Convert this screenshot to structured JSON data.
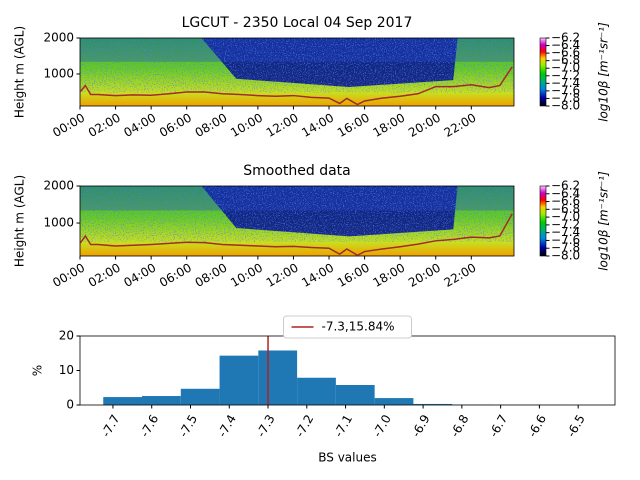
{
  "chart_data": [
    {
      "type": "heatmap",
      "title": "LGCUT - 2350 Local 04 Sep 2017",
      "ylabel": "Height m (AGL)",
      "xlim": [
        0,
        24.4
      ],
      "xticks": [
        {
          "value": 0,
          "label": "00:00"
        },
        {
          "value": 2,
          "label": "02:00"
        },
        {
          "value": 4,
          "label": "04:00"
        },
        {
          "value": 6,
          "label": "06:00"
        },
        {
          "value": 8,
          "label": "08:00"
        },
        {
          "value": 10,
          "label": "10:00"
        },
        {
          "value": 12,
          "label": "12:00"
        },
        {
          "value": 14,
          "label": "14:00"
        },
        {
          "value": 16,
          "label": "16:00"
        },
        {
          "value": 18,
          "label": "18:00"
        },
        {
          "value": 20,
          "label": "20:00"
        },
        {
          "value": 22,
          "label": "22:00"
        }
      ],
      "ylim": [
        110,
        2000
      ],
      "yticks": [
        1000,
        2000
      ],
      "colorbar": {
        "label": "log10β [m⁻¹sr⁻¹]",
        "clim": [
          -8.0,
          -6.2
        ],
        "ticks": [
          {
            "value": -6.2,
            "label": "−6.2"
          },
          {
            "value": -6.4,
            "label": "−6.4"
          },
          {
            "value": -6.6,
            "label": "−6.6"
          },
          {
            "value": -6.8,
            "label": "−6.8"
          },
          {
            "value": -7.0,
            "label": "−7.0"
          },
          {
            "value": -7.2,
            "label": "−7.2"
          },
          {
            "value": -7.4,
            "label": "−7.4"
          },
          {
            "value": -7.6,
            "label": "−7.6"
          },
          {
            "value": -7.8,
            "label": "−7.8"
          },
          {
            "value": -8.0,
            "label": "−8.0"
          }
        ]
      },
      "series": [
        {
          "color": "#a52a2a",
          "x": [
            0,
            0.3,
            0.6,
            1,
            2,
            3,
            4,
            5,
            6,
            7,
            8,
            9,
            10,
            11,
            12,
            13,
            14,
            14.6,
            15,
            15.6,
            16,
            17,
            18,
            19,
            20,
            21,
            22,
            23,
            23.6,
            24.3
          ],
          "values": [
            500,
            680,
            430,
            430,
            400,
            420,
            410,
            450,
            500,
            500,
            450,
            430,
            400,
            380,
            400,
            350,
            330,
            180,
            320,
            150,
            250,
            330,
            380,
            450,
            650,
            650,
            700,
            620,
            680,
            1200
          ]
        }
      ]
    },
    {
      "type": "heatmap",
      "title": "Smoothed data",
      "ylabel": "Height m (AGL)",
      "xlim": [
        0,
        24.4
      ],
      "xticks": [
        {
          "value": 0,
          "label": "00:00"
        },
        {
          "value": 2,
          "label": "02:00"
        },
        {
          "value": 4,
          "label": "04:00"
        },
        {
          "value": 6,
          "label": "06:00"
        },
        {
          "value": 8,
          "label": "08:00"
        },
        {
          "value": 10,
          "label": "10:00"
        },
        {
          "value": 12,
          "label": "12:00"
        },
        {
          "value": 14,
          "label": "14:00"
        },
        {
          "value": 16,
          "label": "16:00"
        },
        {
          "value": 18,
          "label": "18:00"
        },
        {
          "value": 20,
          "label": "20:00"
        },
        {
          "value": 22,
          "label": "22:00"
        }
      ],
      "ylim": [
        110,
        2000
      ],
      "yticks": [
        1000,
        2000
      ],
      "colorbar": {
        "label": "log10β [m⁻¹sr⁻¹]",
        "clim": [
          -8.0,
          -6.2
        ],
        "ticks": [
          {
            "value": -6.2,
            "label": "−6.2"
          },
          {
            "value": -6.4,
            "label": "−6.4"
          },
          {
            "value": -6.6,
            "label": "−6.6"
          },
          {
            "value": -6.8,
            "label": "−6.8"
          },
          {
            "value": -7.0,
            "label": "−7.0"
          },
          {
            "value": -7.2,
            "label": "−7.2"
          },
          {
            "value": -7.4,
            "label": "−7.4"
          },
          {
            "value": -7.6,
            "label": "−7.6"
          },
          {
            "value": -7.8,
            "label": "−7.8"
          },
          {
            "value": -8.0,
            "label": "−8.0"
          }
        ]
      },
      "series": [
        {
          "color": "#a52a2a",
          "x": [
            0,
            0.3,
            0.6,
            1,
            2,
            3,
            4,
            5,
            6,
            7,
            8,
            9,
            10,
            11,
            12,
            13,
            14,
            14.6,
            15,
            15.6,
            16,
            17,
            18,
            19,
            20,
            21,
            22,
            23,
            23.6,
            24.3
          ],
          "values": [
            450,
            650,
            420,
            420,
            380,
            400,
            420,
            450,
            480,
            470,
            420,
            400,
            380,
            360,
            370,
            340,
            320,
            160,
            300,
            130,
            230,
            300,
            360,
            430,
            520,
            560,
            620,
            600,
            650,
            1250
          ]
        }
      ]
    },
    {
      "type": "histogram",
      "xlabel": "BS values",
      "ylabel": "%",
      "color": "#1f77b4",
      "bins": [
        -7.725,
        -7.625,
        -7.525,
        -7.425,
        -7.325,
        -7.225,
        -7.125,
        -7.025,
        -6.925,
        -6.825,
        -6.725,
        -6.625,
        -6.525,
        -6.425
      ],
      "values": [
        2.3,
        2.6,
        4.7,
        14.3,
        15.8,
        7.9,
        5.8,
        2.0,
        0.3,
        0.1,
        0.05,
        0.05,
        0.02
      ],
      "xlim": [
        -7.785,
        -6.405
      ],
      "xticks": [
        -7.7,
        -7.6,
        -7.5,
        -7.4,
        -7.3,
        -7.2,
        -7.1,
        {
          "value": -7.0,
          "label": "-7.0"
        },
        -6.9,
        -6.8,
        -6.7,
        -6.6,
        -6.5
      ],
      "ylim": [
        0,
        20
      ],
      "yticks": [
        0,
        10,
        20
      ],
      "marker": {
        "x": -7.3,
        "color": "#b22222",
        "label": "-7.3,15.84%"
      }
    }
  ]
}
